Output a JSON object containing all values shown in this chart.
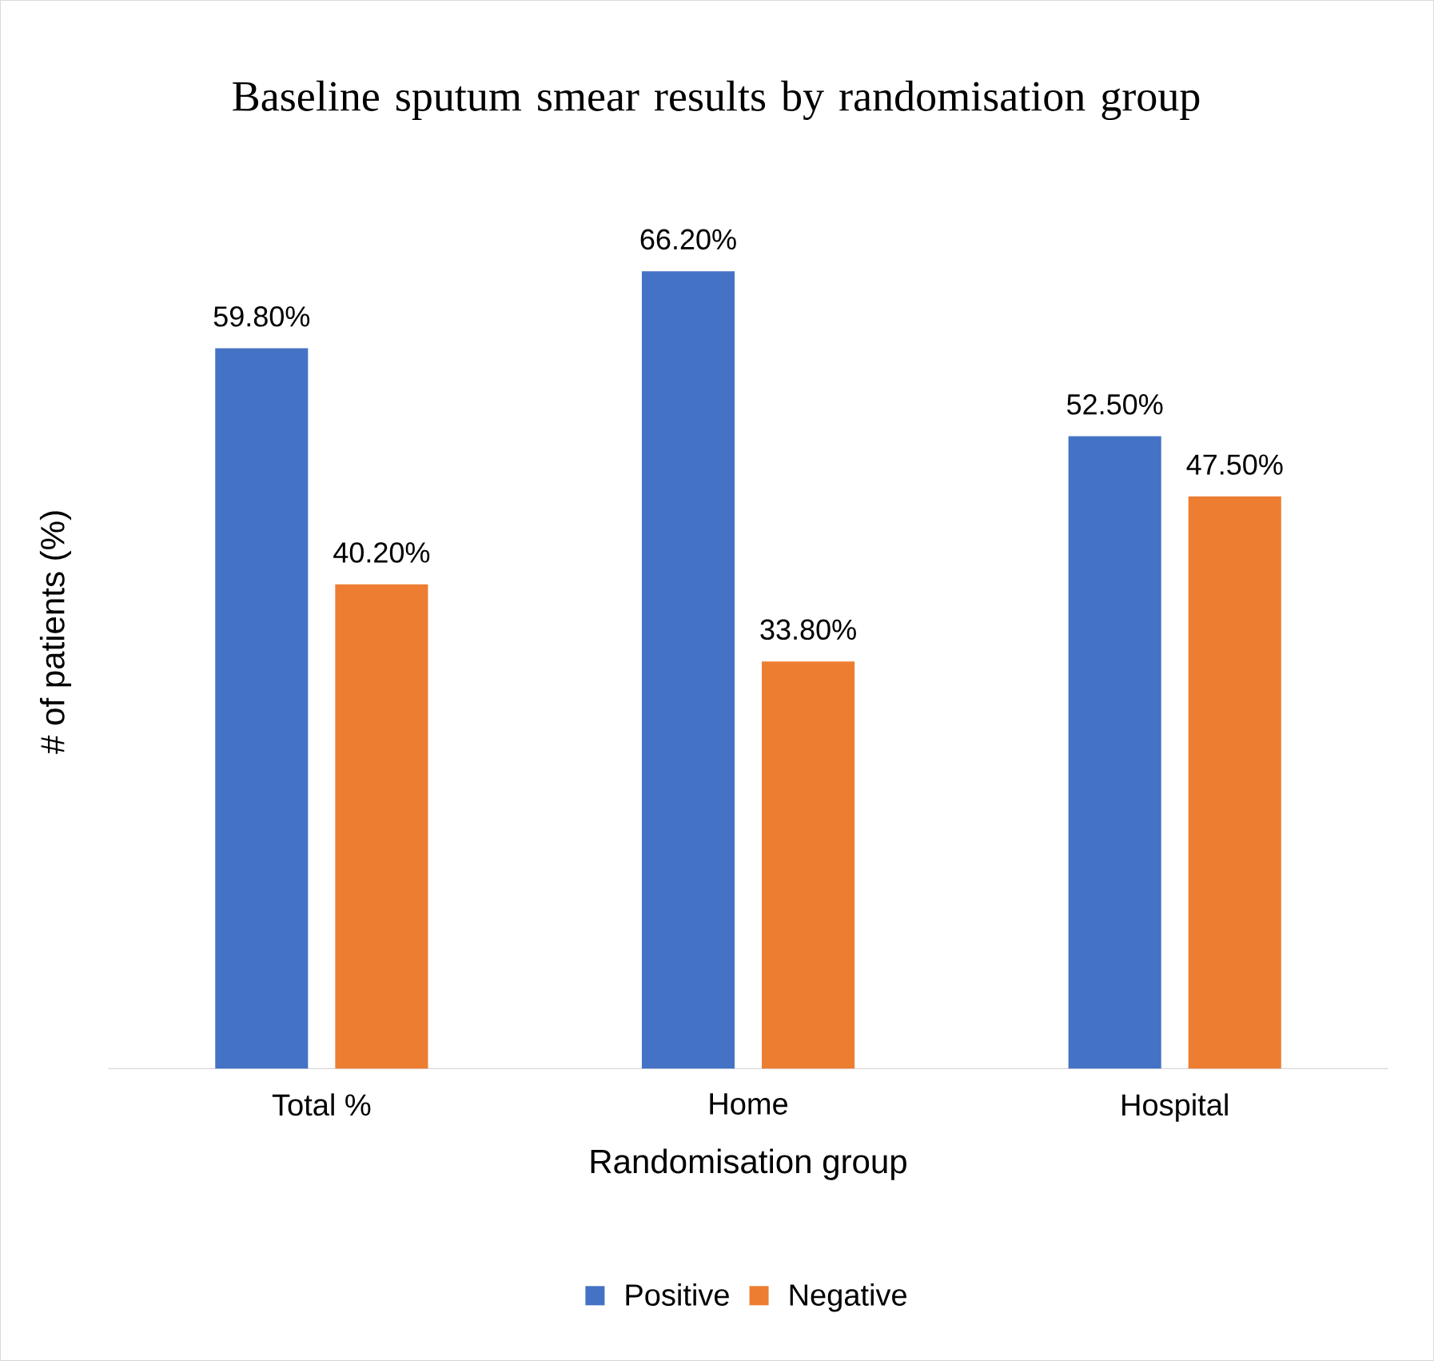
{
  "chart_data": {
    "type": "bar",
    "title": "Baseline sputum smear results by randomisation group",
    "xlabel": "Randomisation group",
    "ylabel": "# of patients (%)",
    "categories": [
      "Total %",
      "Home",
      "Hospital"
    ],
    "legend": "bottom",
    "series": [
      {
        "name": "Positive",
        "color": "#4472c4",
        "values": [
          59.8,
          66.2,
          52.5
        ],
        "value_labels": [
          "59.80%",
          "66.20%",
          "52.50%"
        ]
      },
      {
        "name": "Negative",
        "color": "#ed7d31",
        "values": [
          40.2,
          33.8,
          47.5
        ],
        "value_labels": [
          "40.20%",
          "33.80%",
          "47.50%"
        ]
      }
    ]
  }
}
